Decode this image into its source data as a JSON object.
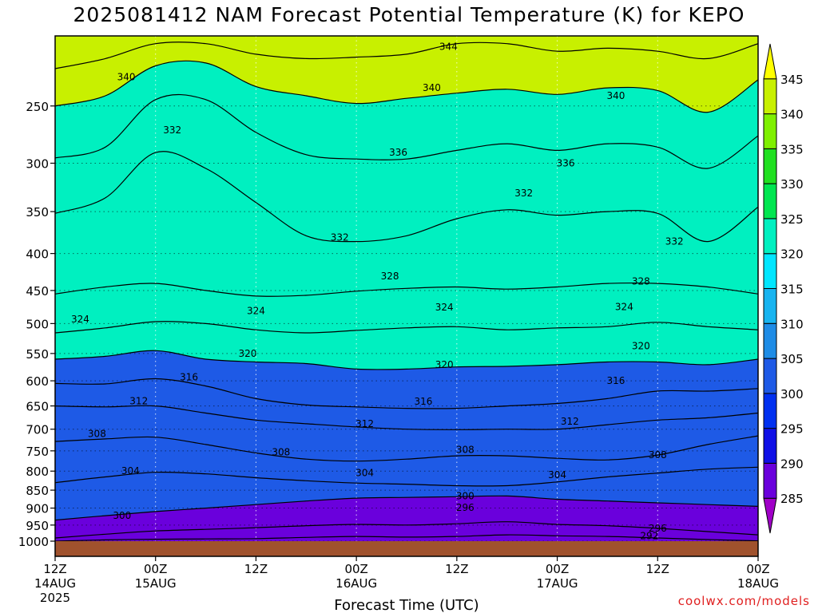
{
  "chart_data": {
    "type": "heatmap",
    "title": "2025081412 NAM Forecast Potential Temperature (K) for KEPO",
    "xlabel": "Forecast Time (UTC)",
    "ylabel": "",
    "credit": "coolwx.com/models",
    "x_axis": {
      "unit": "hours",
      "range": [
        0,
        84
      ],
      "ticks": [
        {
          "x": 0,
          "hour": "12Z",
          "day": "14AUG",
          "year": "2025"
        },
        {
          "x": 12,
          "hour": "00Z",
          "day": "15AUG",
          "year": ""
        },
        {
          "x": 24,
          "hour": "12Z",
          "day": "",
          "year": ""
        },
        {
          "x": 36,
          "hour": "00Z",
          "day": "16AUG",
          "year": ""
        },
        {
          "x": 48,
          "hour": "12Z",
          "day": "",
          "year": ""
        },
        {
          "x": 60,
          "hour": "00Z",
          "day": "17AUG",
          "year": ""
        },
        {
          "x": 72,
          "hour": "12Z",
          "day": "",
          "year": ""
        },
        {
          "x": 84,
          "hour": "00Z",
          "day": "18AUG",
          "year": ""
        }
      ]
    },
    "y_axis": {
      "scale": "log",
      "inverted": true,
      "range": [
        1000,
        200
      ],
      "ticks": [
        250,
        300,
        350,
        400,
        450,
        500,
        550,
        600,
        650,
        700,
        750,
        800,
        850,
        900,
        950,
        1000
      ]
    },
    "colorbar": {
      "levels": [
        285,
        290,
        295,
        300,
        305,
        310,
        315,
        320,
        325,
        330,
        335,
        340,
        345
      ],
      "colors": [
        "#a000c8",
        "#6a00dc",
        "#1010e6",
        "#0030f0",
        "#1e5ae6",
        "#1e8ce6",
        "#18b4f0",
        "#00e6ff",
        "#00f0c0",
        "#00e650",
        "#20e020",
        "#7ff000",
        "#c8f000",
        "#ffff00"
      ]
    },
    "contours": [
      {
        "level": 292,
        "p": [
          1000,
          996,
          994,
          993,
          992,
          988,
          985,
          987,
          985,
          980,
          983,
          985,
          990,
          995,
          999
        ]
      },
      {
        "level": 296,
        "p": [
          990,
          978,
          968,
          963,
          958,
          952,
          948,
          950,
          946,
          940,
          948,
          952,
          960,
          970,
          980
        ]
      },
      {
        "level": 300,
        "p": [
          935,
          922,
          910,
          900,
          890,
          880,
          872,
          870,
          868,
          866,
          875,
          880,
          885,
          890,
          895
        ]
      },
      {
        "level": 304,
        "p": [
          830,
          815,
          803,
          807,
          817,
          825,
          831,
          834,
          838,
          838,
          828,
          815,
          805,
          795,
          790
        ]
      },
      {
        "level": 308,
        "p": [
          728,
          722,
          718,
          735,
          755,
          770,
          775,
          770,
          762,
          762,
          768,
          772,
          760,
          735,
          715
        ]
      },
      {
        "level": 312,
        "p": [
          650,
          652,
          650,
          665,
          680,
          688,
          695,
          700,
          701,
          700,
          700,
          690,
          680,
          675,
          665
        ]
      },
      {
        "level": 316,
        "p": [
          605,
          606,
          596,
          610,
          635,
          648,
          652,
          655,
          655,
          650,
          645,
          635,
          620,
          620,
          615
        ]
      },
      {
        "level": 320,
        "p": [
          560,
          555,
          545,
          560,
          565,
          568,
          578,
          578,
          574,
          573,
          570,
          565,
          565,
          570,
          560
        ]
      },
      {
        "level": 324,
        "p": [
          515,
          507,
          497,
          500,
          510,
          515,
          511,
          507,
          505,
          510,
          507,
          505,
          498,
          505,
          510
        ]
      },
      {
        "level": 328,
        "p": [
          455,
          445,
          440,
          450,
          458,
          457,
          451,
          447,
          445,
          448,
          445,
          440,
          440,
          445,
          455
        ]
      },
      {
        "level": 332,
        "p": [
          352,
          335,
          290,
          305,
          340,
          378,
          385,
          378,
          358,
          348,
          354,
          350,
          352,
          385,
          345
        ]
      },
      {
        "level": 336,
        "p": [
          295,
          285,
          245,
          245,
          272,
          292,
          296,
          296,
          288,
          282,
          288,
          282,
          285,
          305,
          275
        ]
      },
      {
        "level": 340,
        "p": [
          250,
          242,
          220,
          218,
          235,
          242,
          248,
          244,
          240,
          237,
          241,
          236,
          238,
          255,
          230
        ]
      },
      {
        "level": 344,
        "p": [
          222,
          215,
          205,
          205,
          212,
          215,
          214,
          212,
          205,
          205,
          210,
          208,
          210,
          215,
          205
        ]
      }
    ],
    "contour_labels": [
      {
        "text": "340",
        "x": 8.5,
        "p": 228
      },
      {
        "text": "344",
        "x": 47,
        "p": 207
      },
      {
        "text": "340",
        "x": 45,
        "p": 236
      },
      {
        "text": "340",
        "x": 67,
        "p": 242
      },
      {
        "text": "332",
        "x": 14,
        "p": 270
      },
      {
        "text": "336",
        "x": 41,
        "p": 290
      },
      {
        "text": "336",
        "x": 61,
        "p": 300
      },
      {
        "text": "332",
        "x": 56,
        "p": 330
      },
      {
        "text": "332",
        "x": 34,
        "p": 380
      },
      {
        "text": "332",
        "x": 74,
        "p": 385
      },
      {
        "text": "328",
        "x": 40,
        "p": 430
      },
      {
        "text": "328",
        "x": 70,
        "p": 437
      },
      {
        "text": "324",
        "x": 3,
        "p": 493
      },
      {
        "text": "324",
        "x": 24,
        "p": 480
      },
      {
        "text": "324",
        "x": 46.5,
        "p": 475
      },
      {
        "text": "324",
        "x": 68,
        "p": 474
      },
      {
        "text": "320",
        "x": 23,
        "p": 550
      },
      {
        "text": "320",
        "x": 46.5,
        "p": 570
      },
      {
        "text": "320",
        "x": 70,
        "p": 537
      },
      {
        "text": "316",
        "x": 16,
        "p": 593
      },
      {
        "text": "316",
        "x": 44,
        "p": 641
      },
      {
        "text": "316",
        "x": 67,
        "p": 600
      },
      {
        "text": "312",
        "x": 10,
        "p": 640
      },
      {
        "text": "312",
        "x": 37,
        "p": 688
      },
      {
        "text": "312",
        "x": 61.5,
        "p": 683
      },
      {
        "text": "308",
        "x": 5,
        "p": 710
      },
      {
        "text": "308",
        "x": 27,
        "p": 753
      },
      {
        "text": "308",
        "x": 49,
        "p": 747
      },
      {
        "text": "308",
        "x": 72,
        "p": 760
      },
      {
        "text": "304",
        "x": 9,
        "p": 800
      },
      {
        "text": "304",
        "x": 37,
        "p": 805
      },
      {
        "text": "304",
        "x": 60,
        "p": 810
      },
      {
        "text": "300",
        "x": 49,
        "p": 866
      },
      {
        "text": "296",
        "x": 49,
        "p": 899
      },
      {
        "text": "300",
        "x": 8,
        "p": 922
      },
      {
        "text": "296",
        "x": 72,
        "p": 960
      },
      {
        "text": "292",
        "x": 71,
        "p": 983
      }
    ]
  }
}
